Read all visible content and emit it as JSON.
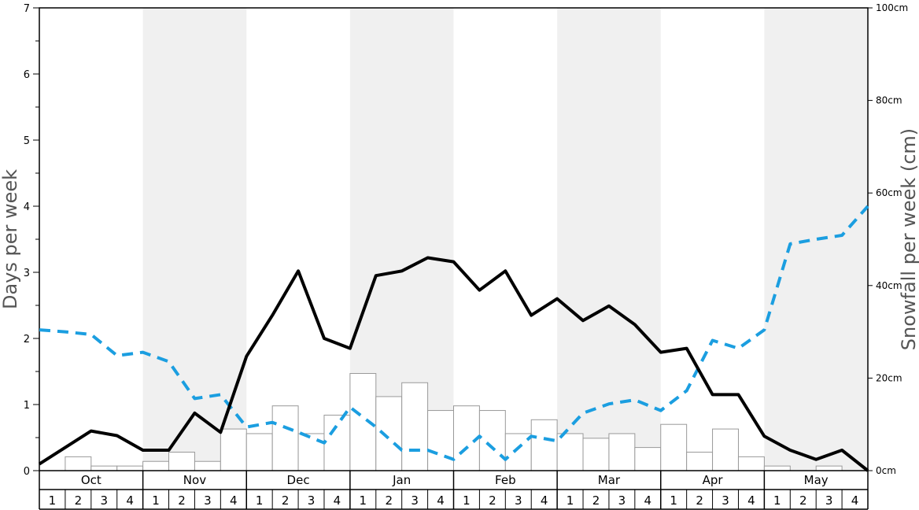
{
  "chart_data": {
    "type": "bar+line",
    "months": [
      "Oct",
      "Nov",
      "Dec",
      "Jan",
      "Feb",
      "Mar",
      "Apr",
      "May"
    ],
    "weeks": [
      "1",
      "2",
      "3",
      "4"
    ],
    "left_axis": {
      "label": "Days per week",
      "ylim": [
        0,
        7
      ],
      "ticks": [
        "0",
        "1",
        "2",
        "3",
        "4",
        "5",
        "6",
        "7"
      ]
    },
    "right_axis": {
      "label": "Snowfall per week (cm)",
      "ylim": [
        0,
        100
      ],
      "ticks": [
        "0cm",
        "20cm",
        "40cm",
        "60cm",
        "80cm",
        "100cm"
      ]
    },
    "snowfall_bars_cm": [
      0,
      3,
      1,
      1,
      2,
      4,
      2,
      9,
      8,
      14,
      8,
      12,
      21,
      16,
      19,
      13,
      14,
      13,
      8,
      11,
      8,
      7,
      8,
      5,
      10,
      4,
      9,
      3,
      1,
      0,
      1,
      0
    ],
    "solid_line_days": [
      0.1,
      0.35,
      0.6,
      0.53,
      0.31,
      0.31,
      0.87,
      0.58,
      1.73,
      2.35,
      3.02,
      2.0,
      1.85,
      2.95,
      3.02,
      3.22,
      3.16,
      2.73,
      3.02,
      2.35,
      2.6,
      2.27,
      2.49,
      2.21,
      1.79,
      1.85,
      1.15,
      1.15,
      0.52,
      0.31,
      0.17,
      0.31,
      0.0
    ],
    "dashed_line_days": [
      2.13,
      2.1,
      2.06,
      1.74,
      1.79,
      1.65,
      1.09,
      1.15,
      0.66,
      0.73,
      0.58,
      0.42,
      0.96,
      0.66,
      0.31,
      0.31,
      0.17,
      0.52,
      0.17,
      0.52,
      0.45,
      0.87,
      1.01,
      1.07,
      0.91,
      1.21,
      1.97,
      1.85,
      2.13,
      3.43,
      3.5,
      3.56,
      4.0
    ],
    "colors": {
      "solid_line": "#000000",
      "dashed_line": "#1b9ee0",
      "bars_fill": "#ffffff",
      "bars_stroke": "#999999",
      "shade": "#f0f0f0"
    },
    "grid": false
  }
}
